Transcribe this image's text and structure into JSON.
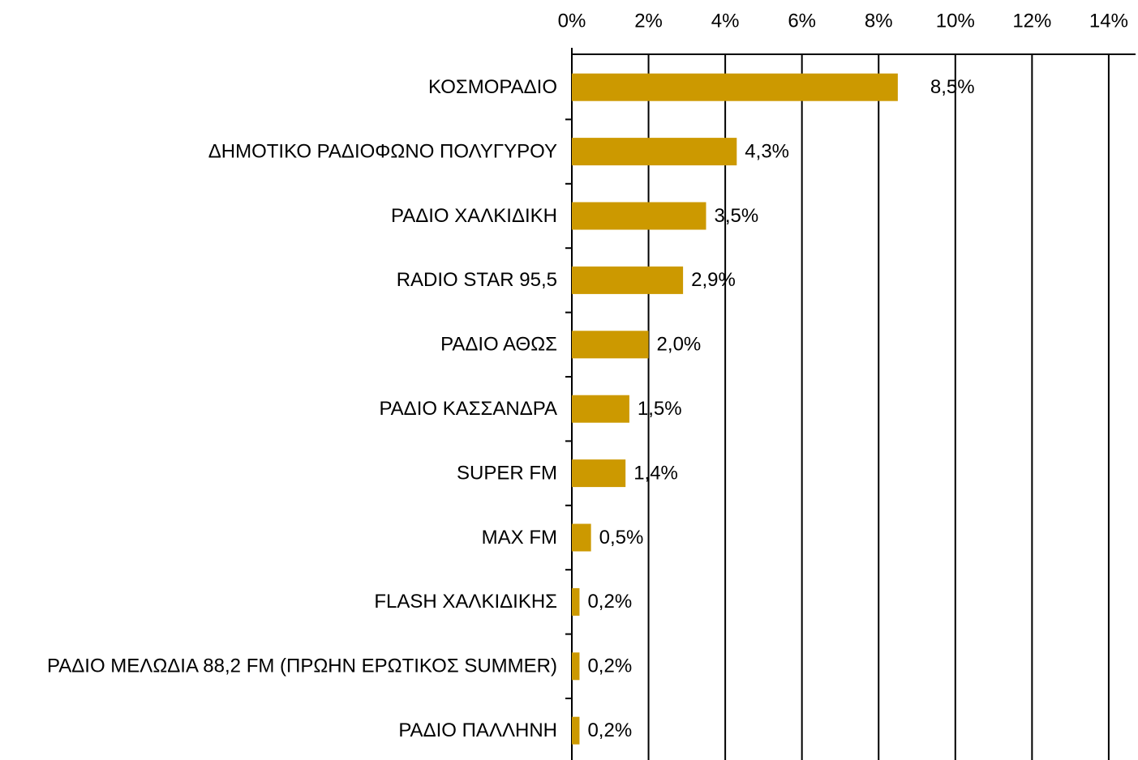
{
  "chart_data": {
    "type": "hbar",
    "categories": [
      "ΚΟΣΜΟΡΑΔΙΟ",
      "ΔΗΜΟΤΙΚΟ ΡΑΔΙΟΦΩΝΟ ΠΟΛΥΓΥΡΟΥ",
      "ΡΑΔΙΟ ΧΑΛΚΙΔΙΚΗ",
      "RADIO STAR 95,5",
      "ΡΑΔΙΟ ΑΘΩΣ",
      "ΡΑΔΙΟ ΚΑΣΣΑΝΔΡΑ",
      "SUPER FM",
      "MAX FM",
      "FLASH ΧΑΛΚΙΔΙΚΗΣ",
      "ΡΑΔΙΟ ΜΕΛΩΔΙΑ 88,2 FM (ΠΡΩΗΝ ΕΡΩΤΙΚΟΣ SUMMER)",
      "ΡΑΔΙΟ ΠΑΛΛΗΝΗ"
    ],
    "values": [
      8.5,
      4.3,
      3.5,
      2.9,
      2.0,
      1.5,
      1.4,
      0.5,
      0.2,
      0.2,
      0.2
    ],
    "value_labels": [
      "8,5%",
      "4,3%",
      "3,5%",
      "2,9%",
      "2,0%",
      "1,5%",
      "1,4%",
      "0,5%",
      "0,2%",
      "0,2%",
      "0,2%"
    ],
    "color": "#cc9900",
    "xlim": [
      0,
      14.7
    ],
    "xticks": [
      {
        "value": 0,
        "label": "0%"
      },
      {
        "value": 2,
        "label": "2%"
      },
      {
        "value": 4,
        "label": "4%"
      },
      {
        "value": 6,
        "label": "6%"
      },
      {
        "value": 8,
        "label": "8%"
      },
      {
        "value": 10,
        "label": "10%"
      },
      {
        "value": 12,
        "label": "12%"
      },
      {
        "value": 14,
        "label": "14%"
      }
    ],
    "grid": true
  }
}
